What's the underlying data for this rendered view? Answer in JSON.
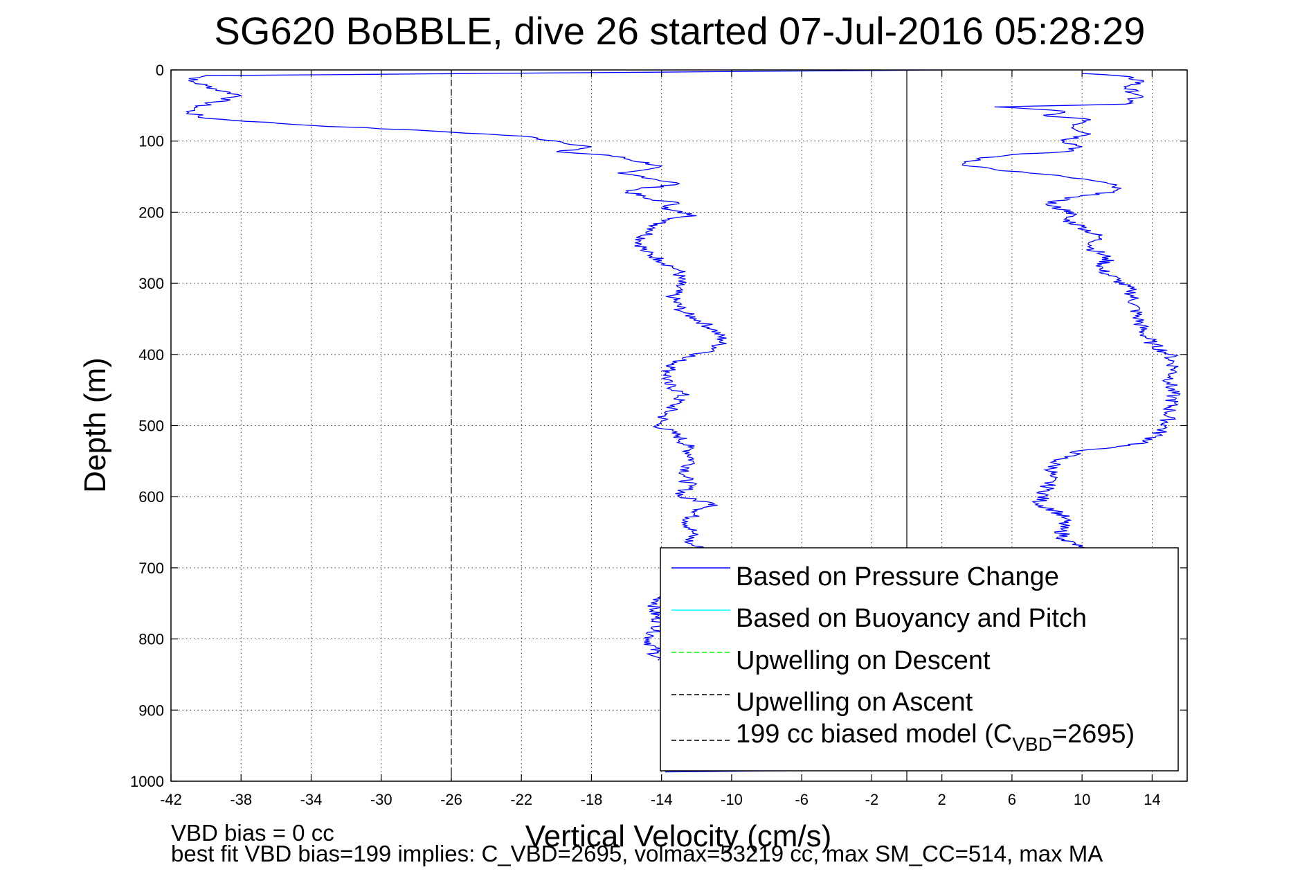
{
  "chart_data": {
    "type": "line",
    "title": "SG620 BoBBLE, dive 26 started 07-Jul-2016 05:28:29",
    "xlabel": "Vertical Velocity (cm/s)",
    "ylabel": "Depth (m)",
    "xlim": [
      -42,
      16
    ],
    "ylim": [
      1000,
      0
    ],
    "y_reversed": true,
    "grid": true,
    "xticks": [
      "-42",
      "-38",
      "-34",
      "-30",
      "-26",
      "-22",
      "-18",
      "-14",
      "-10",
      "-6",
      "-2",
      "2",
      "6",
      "10",
      "14"
    ],
    "yticks": [
      "0",
      "100",
      "200",
      "300",
      "400",
      "500",
      "600",
      "700",
      "800",
      "900",
      "1000"
    ],
    "legend_position": "bottom-right",
    "legend": [
      {
        "label": "Based on Pressure Change",
        "color": "#0000ff",
        "style": "solid"
      },
      {
        "label": "Based on Buoyancy and Pitch",
        "color": "#00ffff",
        "style": "solid"
      },
      {
        "label": "Upwelling on Descent",
        "color": "#00ff00",
        "style": "dashed"
      },
      {
        "label": "Upwelling on Ascent",
        "color": "#000000",
        "style": "dashed"
      },
      {
        "label_prefix": "199 cc biased model (C",
        "label_sub": "VBD",
        "label_suffix": "=2695)",
        "color": "#000000",
        "style": "dashed"
      }
    ],
    "series": [
      {
        "name": "Based on Pressure Change",
        "segment": "descent",
        "color": "#0000ff",
        "points": [
          [
            2,
            0
          ],
          [
            -40,
            8
          ],
          [
            -41,
            15
          ],
          [
            -40,
            22
          ],
          [
            -39,
            30
          ],
          [
            -38,
            36
          ],
          [
            -39.5,
            45
          ],
          [
            -40.5,
            52
          ],
          [
            -41,
            60
          ],
          [
            -40,
            68
          ],
          [
            -34,
            78
          ],
          [
            -27,
            86
          ],
          [
            -22,
            93
          ],
          [
            -20,
            100
          ],
          [
            -18,
            108
          ],
          [
            -20,
            115
          ],
          [
            -17,
            120
          ],
          [
            -14,
            135
          ],
          [
            -16.5,
            145
          ],
          [
            -15,
            150
          ],
          [
            -13,
            160
          ],
          [
            -16,
            170
          ],
          [
            -15,
            180
          ],
          [
            -13,
            188
          ],
          [
            -14,
            195
          ],
          [
            -12,
            205
          ],
          [
            -14,
            212
          ],
          [
            -14.5,
            225
          ],
          [
            -15.2,
            240
          ],
          [
            -15,
            255
          ],
          [
            -14,
            268
          ],
          [
            -13,
            282
          ],
          [
            -13,
            300
          ],
          [
            -13.4,
            320
          ],
          [
            -12.8,
            340
          ],
          [
            -12,
            350
          ],
          [
            -11,
            365
          ],
          [
            -10.5,
            380
          ],
          [
            -11,
            395
          ],
          [
            -12.8,
            405
          ],
          [
            -13.5,
            420
          ],
          [
            -13.8,
            440
          ],
          [
            -12.8,
            455
          ],
          [
            -13.2,
            470
          ],
          [
            -13.8,
            485
          ],
          [
            -14.2,
            500
          ],
          [
            -13,
            515
          ],
          [
            -12.5,
            530
          ],
          [
            -12.2,
            550
          ],
          [
            -12.7,
            570
          ],
          [
            -12.4,
            585
          ],
          [
            -13,
            600
          ],
          [
            -11,
            610
          ],
          [
            -10.8,
            612
          ],
          [
            -12,
            620
          ],
          [
            -12.5,
            635
          ],
          [
            -12.2,
            650
          ],
          [
            -12.5,
            665
          ],
          [
            -11.5,
            675
          ],
          [
            -14,
            740
          ],
          [
            -14.5,
            760
          ],
          [
            -14,
            780
          ],
          [
            -14.7,
            800
          ],
          [
            -14.2,
            830
          ]
        ]
      },
      {
        "name": "Based on Pressure Change",
        "segment": "ascent",
        "color": "#0000ff",
        "points": [
          [
            10,
            5
          ],
          [
            12,
            8
          ],
          [
            13.5,
            15
          ],
          [
            12.5,
            25
          ],
          [
            13.2,
            35
          ],
          [
            12.5,
            48
          ],
          [
            9,
            50
          ],
          [
            5,
            52
          ],
          [
            9,
            58
          ],
          [
            8,
            65
          ],
          [
            10.5,
            70
          ],
          [
            9.5,
            80
          ],
          [
            10.5,
            90
          ],
          [
            9,
            100
          ],
          [
            10,
            108
          ],
          [
            9,
            115
          ],
          [
            6.5,
            118
          ],
          [
            4,
            125
          ],
          [
            3.2,
            132
          ],
          [
            5,
            140
          ],
          [
            7,
            145
          ],
          [
            9,
            150
          ],
          [
            10.5,
            155
          ],
          [
            11.5,
            160
          ],
          [
            12,
            168
          ],
          [
            11,
            175
          ],
          [
            9,
            180
          ],
          [
            8,
            190
          ],
          [
            9.5,
            200
          ],
          [
            9,
            210
          ],
          [
            10,
            220
          ],
          [
            11,
            235
          ],
          [
            10.5,
            250
          ],
          [
            11.5,
            265
          ],
          [
            11,
            280
          ],
          [
            12,
            295
          ],
          [
            12.8,
            310
          ],
          [
            13,
            330
          ],
          [
            13.2,
            350
          ],
          [
            13.5,
            370
          ],
          [
            14,
            385
          ],
          [
            15,
            400
          ],
          [
            15.3,
            420
          ],
          [
            15,
            440
          ],
          [
            15.2,
            460
          ],
          [
            15,
            480
          ],
          [
            14.8,
            500
          ],
          [
            14.2,
            515
          ],
          [
            13.5,
            525
          ],
          [
            10,
            535
          ],
          [
            8.5,
            550
          ],
          [
            8.2,
            570
          ],
          [
            8,
            590
          ],
          [
            7.5,
            610
          ],
          [
            8.5,
            620
          ],
          [
            9,
            630
          ],
          [
            8.8,
            645
          ],
          [
            9,
            660
          ],
          [
            9.8,
            670
          ],
          [
            10.5,
            680
          ]
        ]
      },
      {
        "name": "Based on Pressure Change",
        "segment": "bottom",
        "color": "#0000ff",
        "points": [
          [
            -13.8,
            987
          ],
          [
            -5,
            985
          ],
          [
            2,
            984
          ],
          [
            8,
            983
          ]
        ]
      },
      {
        "name": "199 cc biased model",
        "color": "#000000",
        "style": "dashed",
        "points": [
          [
            -26,
            0
          ],
          [
            -26,
            1000
          ]
        ]
      },
      {
        "name": "reference",
        "color": "#000000",
        "style": "solid",
        "points": [
          [
            0,
            0
          ],
          [
            0,
            1000
          ]
        ]
      }
    ]
  },
  "footer": {
    "line1": "VBD bias = 0 cc",
    "line2": "best fit VBD bias=199 implies: C_VBD=2695, volmax=53219 cc, max SM_CC=514, max MA"
  }
}
